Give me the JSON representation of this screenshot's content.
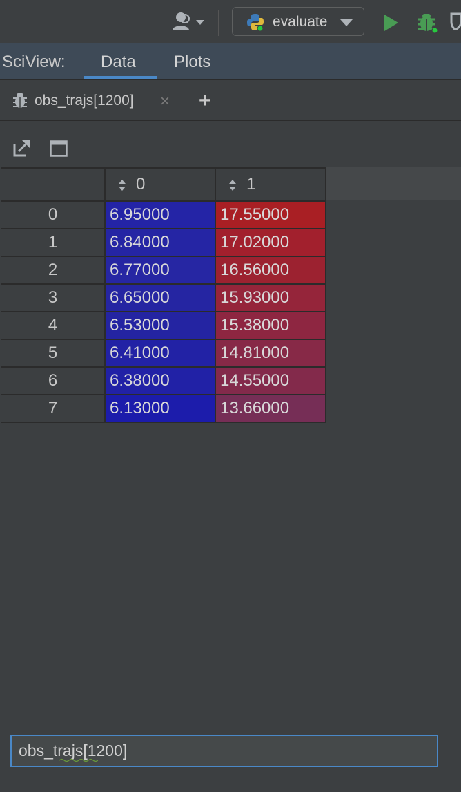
{
  "toolbar": {
    "run_config_label": "evaluate"
  },
  "sciview": {
    "title": "SciView:",
    "tabs": [
      {
        "label": "Data",
        "active": true
      },
      {
        "label": "Plots",
        "active": false
      }
    ]
  },
  "variable_tab": {
    "label": "obs_trajs[1200]",
    "close": "×",
    "add": "+"
  },
  "table": {
    "columns": [
      "0",
      "1"
    ],
    "rows": [
      {
        "index": "0",
        "c0": "6.95000",
        "c1": "17.55000",
        "bg0": "#2424a6",
        "bg1": "#a91f24"
      },
      {
        "index": "1",
        "c0": "6.84000",
        "c1": "17.02000",
        "bg0": "#2525a4",
        "bg1": "#a2202d"
      },
      {
        "index": "2",
        "c0": "6.77000",
        "c1": "16.56000",
        "bg0": "#2626a3",
        "bg1": "#9c2230"
      },
      {
        "index": "3",
        "c0": "6.65000",
        "c1": "15.93000",
        "bg0": "#2525a2",
        "bg1": "#95253a"
      },
      {
        "index": "4",
        "c0": "6.53000",
        "c1": "15.38000",
        "bg0": "#2424a2",
        "bg1": "#8e2641"
      },
      {
        "index": "5",
        "c0": "6.41000",
        "c1": "14.81000",
        "bg0": "#2222a5",
        "bg1": "#872947"
      },
      {
        "index": "6",
        "c0": "6.38000",
        "c1": "14.55000",
        "bg0": "#2121a6",
        "bg1": "#832a4b"
      },
      {
        "index": "7",
        "c0": "6.13000",
        "c1": "13.66000",
        "bg0": "#1c1cab",
        "bg1": "#762e56"
      }
    ]
  },
  "bottom_input": {
    "value": "obs_trajs[1200]"
  },
  "colors": {
    "accent": "#4a88c7",
    "run_green": "#499c54"
  }
}
